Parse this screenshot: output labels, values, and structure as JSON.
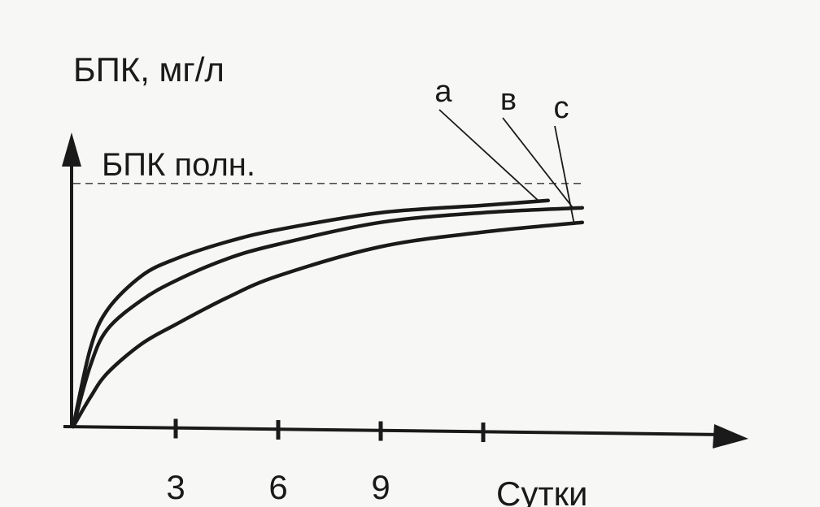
{
  "chart_data": {
    "type": "line",
    "y_label": "БПК, мг/л",
    "x_label": "Сутки",
    "reference_line": {
      "label": "БПК полн.",
      "value": 1.0
    },
    "xlim": [
      0,
      19.5
    ],
    "ylim": [
      0,
      1.2
    ],
    "xticks": [
      3,
      6,
      9,
      {
        "value": 12,
        "label": null
      }
    ],
    "series": [
      {
        "name": "а",
        "color": "#1a1a1a",
        "x": [
          0,
          0.5,
          1,
          2,
          3,
          4.5,
          6,
          9,
          12,
          13.9
        ],
        "values": [
          0,
          0.32,
          0.48,
          0.62,
          0.69,
          0.76,
          0.81,
          0.88,
          0.91,
          0.93
        ]
      },
      {
        "name": "в",
        "color": "#1a1a1a",
        "x": [
          0,
          0.5,
          1,
          2,
          3,
          4.5,
          6,
          9,
          12,
          14.9
        ],
        "values": [
          0,
          0.25,
          0.4,
          0.52,
          0.6,
          0.69,
          0.75,
          0.84,
          0.88,
          0.9
        ]
      },
      {
        "name": "с",
        "color": "#1a1a1a",
        "x": [
          0,
          0.5,
          1,
          2,
          3,
          4.5,
          6,
          9,
          12,
          14.9
        ],
        "values": [
          0,
          0.12,
          0.22,
          0.34,
          0.42,
          0.53,
          0.62,
          0.74,
          0.8,
          0.84
        ]
      }
    ]
  }
}
